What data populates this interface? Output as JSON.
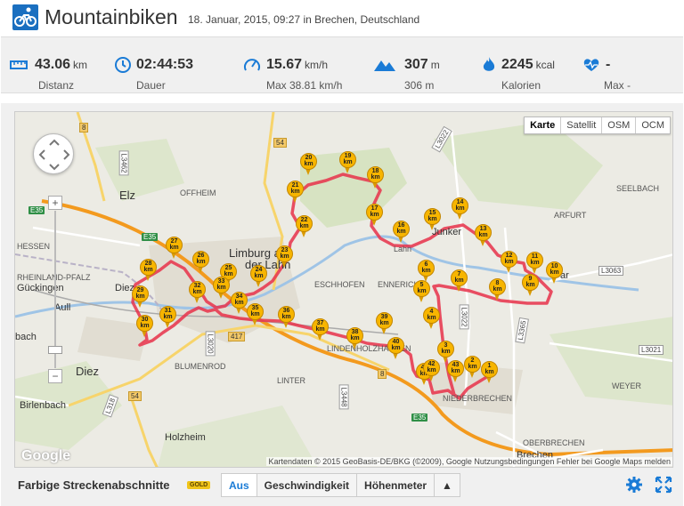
{
  "header": {
    "icon": "cyclist-icon",
    "title": "Mountainbiken",
    "subtitle": "18. Januar, 2015, 09:27 in Brechen, Deutschland"
  },
  "stats": [
    {
      "icon": "ruler-icon",
      "value": "43.06",
      "unit": "km",
      "label": "Distanz"
    },
    {
      "icon": "clock-icon",
      "value": "02:44:53",
      "unit": "",
      "label": "Dauer"
    },
    {
      "icon": "speedometer-icon",
      "value": "15.67",
      "unit": "km/h",
      "label": "Max 38.81 km/h"
    },
    {
      "icon": "mountain-icon",
      "value": "307",
      "unit": "m",
      "label": "306 m"
    },
    {
      "icon": "flame-icon",
      "value": "2245",
      "unit": "kcal",
      "label": "Kalorien"
    },
    {
      "icon": "heart-rate-icon",
      "value": "-",
      "unit": "",
      "label": "Max -"
    }
  ],
  "map": {
    "maptypes": [
      "Karte",
      "Satellit",
      "OSM",
      "OCM"
    ],
    "labels": {
      "elz": "Elz",
      "offheim": "OFFHEIM",
      "limburg1": "Limburg a",
      "limburg2": "der Lahn",
      "eschhofen": "ESCHHOFEN",
      "ennerich": "ENNERICH",
      "hessen": "HESSEN",
      "rheinland": "RHEINLAND-PFALZ",
      "guckingen": "Gückingen",
      "aull": "Aull",
      "bach": "bach",
      "diez": "Diez",
      "diez2": "Diez",
      "birlenbach": "Birlenbach",
      "holzheim": "Holzheim",
      "blumenrod": "BLUMENROD",
      "linter": "LINTER",
      "lindenholz": "LINDENHOLZHAUSEN",
      "niederbrechen": "NIEDERBRECHEN",
      "oberbrechen": "OBERBRECHEN",
      "weyer": "WEYER",
      "arfurt": "ARFURT",
      "seelbach": "SEELBACH",
      "junker": "Junker",
      "lahn": "Lahn",
      "brechen": "Brechen",
      "ar": "ar"
    },
    "roads": {
      "r8a": "8",
      "r54a": "54",
      "r54b": "54",
      "r8b": "8",
      "r417": "417",
      "e35a": "E35",
      "e35b": "E35",
      "e35c": "E35",
      "l3022": "L3022",
      "l3063": "L3063",
      "l3365": "L3365",
      "l3021": "L3021",
      "l3020": "L3020",
      "l3448": "L3448",
      "l3022b": "L3022",
      "l3462": "L3462",
      "l318": "L318"
    },
    "markers": [
      "1",
      "2",
      "3",
      "4",
      "5",
      "6",
      "7",
      "8",
      "9",
      "10",
      "11",
      "12",
      "13",
      "14",
      "15",
      "16",
      "17",
      "18",
      "19",
      "20",
      "21",
      "22",
      "23",
      "24",
      "25",
      "26",
      "27",
      "28",
      "29",
      "30",
      "31",
      "32",
      "33",
      "34",
      "35",
      "36",
      "37",
      "38",
      "39",
      "40",
      "41",
      "42",
      "43"
    ],
    "marker_unit": "km",
    "zoom_plus": "+",
    "zoom_minus": "−",
    "google": "Google",
    "attribution": "Kartendaten © 2015 GeoBasis-DE/BKG (©2009), Google   Nutzungsbedingungen   Fehler bei Google Maps melden"
  },
  "toolbar": {
    "title": "Farbige Streckenabschnitte",
    "badge": "GOLD",
    "buttons": [
      "Aus",
      "Geschwindigkeit",
      "Höhenmeter",
      "▲"
    ]
  },
  "colors": {
    "accent": "#1a7bd6",
    "route": "#e8314a",
    "marker": "#f7b500"
  }
}
